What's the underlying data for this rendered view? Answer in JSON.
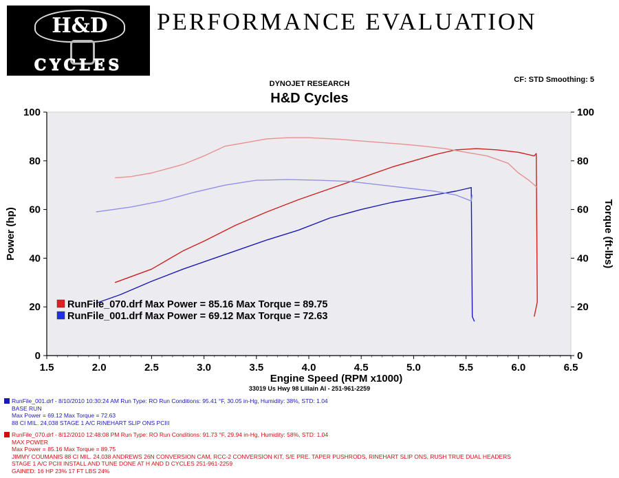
{
  "header": {
    "logo_text": "H&D",
    "logo_subtext": "CYCLES",
    "title": "PERFORMANCE EVALUATION",
    "research": "DYNOJET RESEARCH",
    "cf_info": "CF: STD  Smoothing: 5"
  },
  "footer": {
    "address": "33019 Us Hwy 98 Lillain Al - 251-961-2259",
    "runs": [
      {
        "color": "#1a1ab8",
        "lines": [
          "RunFile_001.drf - 8/10/2010 10:30:24 AM  Run Type: RO  Run Conditions: 95.41 °F, 30.05 in-Hg,  Humidity:  38%, STD: 1.04",
          "BASE RUN",
          "Max Power = 69.12  Max Torque = 72.63",
          "88 CI     MIL. 24,038 STAGE 1 A/C RINEHART SLIP ONS PCIII"
        ]
      },
      {
        "color": "#cc1010",
        "lines": [
          "RunFile_070.drf - 8/12/2010 12:48:08 PM  Run Type: RO  Run Conditions: 91.73 °F, 29.94 in-Hg,  Humidity:  58%, STD: 1.04",
          "MAX POWER",
          "Max Power = 85.16  Max Torque = 89.75",
          "JIMMY COUMANIS 88 CI     MIL. 24,038 ANDREWS 26N CONVERSION CAM, RCC-2 CONVERSION KIT, S/E PRE. TAPER PUSHRODS, RINEHART SLIP ONS, RUSH TRUE DUAL HEADERS",
          "STAGE 1 A/C PCIII INSTALL AND TUNE DONE AT H AND D CYCLES 251-961-2259",
          "GAINED: 16 HP 23% 17 FT LBS 24%"
        ]
      }
    ]
  },
  "chart_data": {
    "type": "line",
    "title": "H&D Cycles",
    "xlabel": "Engine Speed (RPM x1000)",
    "ylabel": "Power (hp)",
    "y2label": "Torque (ft-lbs)",
    "xlim": [
      1.5,
      6.5
    ],
    "ylim": [
      0,
      100
    ],
    "y2lim": [
      0,
      100
    ],
    "xticks": [
      "1.5",
      "2.0",
      "2.5",
      "3.0",
      "3.5",
      "4.0",
      "4.5",
      "5.0",
      "5.5",
      "6.0",
      "6.5"
    ],
    "yticks": [
      "0",
      "20",
      "40",
      "60",
      "80",
      "100"
    ],
    "grid": false,
    "legend_position": "bottom-left",
    "legend": [
      {
        "color": "#e02020",
        "text": "RunFile_070.drf Max Power = 85.16     Max Torque = 89.75"
      },
      {
        "color": "#2030e0",
        "text": "RunFile_001.drf Max Power = 69.12     Max Torque = 72.63"
      }
    ],
    "series": [
      {
        "name": "RunFile_070.drf",
        "kind": "power",
        "color": "#cc2020",
        "x": [
          2.15,
          2.5,
          2.8,
          3.0,
          3.3,
          3.6,
          3.9,
          4.2,
          4.5,
          4.8,
          5.0,
          5.2,
          5.4,
          5.6,
          5.8,
          6.0,
          6.1,
          6.15,
          6.17,
          6.18,
          6.15
        ],
        "y": [
          30,
          35.5,
          43,
          47,
          53.5,
          59,
          64,
          68.5,
          73,
          77.5,
          80,
          82.5,
          84.5,
          85,
          84.5,
          83.5,
          82.5,
          82,
          83,
          22,
          16
        ]
      },
      {
        "name": "RunFile_070.drf",
        "kind": "torque",
        "color": "#e89090",
        "x": [
          2.15,
          2.3,
          2.5,
          2.8,
          3.0,
          3.2,
          3.4,
          3.6,
          3.8,
          4.0,
          4.3,
          4.6,
          4.9,
          5.1,
          5.3,
          5.5,
          5.7,
          5.9,
          6.0,
          6.1,
          6.18
        ],
        "y": [
          73,
          73.5,
          75,
          78.5,
          82,
          86,
          87.5,
          89,
          89.5,
          89.5,
          88.8,
          87.8,
          86.8,
          86,
          85,
          83.5,
          82,
          79,
          75,
          72,
          69
        ]
      },
      {
        "name": "RunFile_001.drf",
        "kind": "power",
        "color": "#1a1ab0",
        "x": [
          1.97,
          2.2,
          2.5,
          2.8,
          3.0,
          3.3,
          3.6,
          3.9,
          4.2,
          4.5,
          4.8,
          5.0,
          5.2,
          5.4,
          5.5,
          5.55,
          5.56,
          5.58
        ],
        "y": [
          21.5,
          25,
          30.5,
          35.5,
          38.5,
          43,
          47.5,
          51.5,
          56.5,
          60,
          63,
          64.5,
          66,
          67.5,
          68.5,
          69,
          16,
          14
        ]
      },
      {
        "name": "RunFile_001.drf",
        "kind": "torque",
        "color": "#9090e8",
        "x": [
          1.97,
          2.05,
          2.3,
          2.6,
          2.9,
          3.2,
          3.5,
          3.8,
          4.1,
          4.4,
          4.7,
          5.0,
          5.2,
          5.4,
          5.55,
          5.56
        ],
        "y": [
          59,
          59.5,
          61,
          63.5,
          67,
          70,
          72,
          72.3,
          72,
          71.5,
          70,
          68.5,
          67.5,
          66,
          63.5,
          66
        ]
      }
    ]
  }
}
